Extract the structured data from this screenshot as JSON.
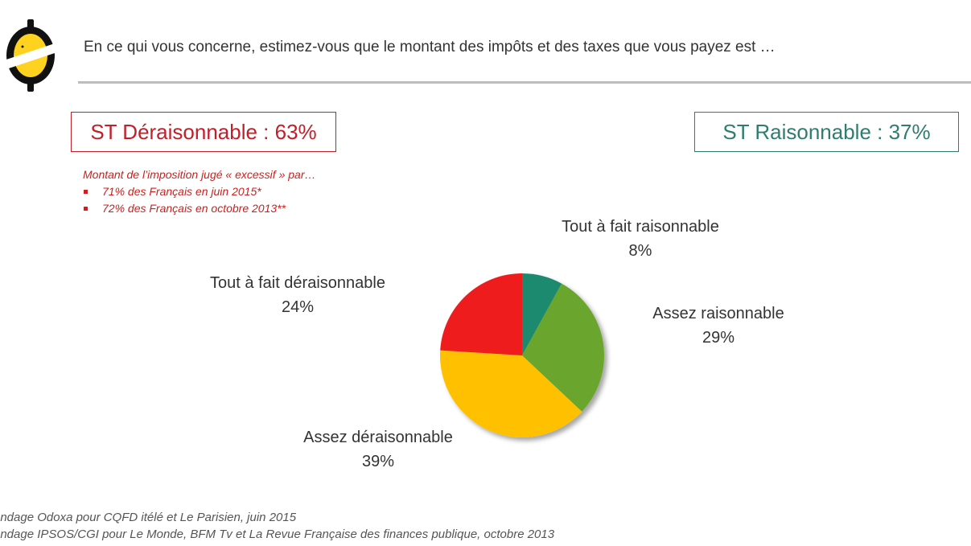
{
  "header": {
    "question": "En ce qui vous concerne, estimez-vous que le montant des impôts et des taxes que vous payez est …"
  },
  "summary": {
    "unreasonable": "ST Déraisonnable : 63%",
    "reasonable": "ST Raisonnable : 37%"
  },
  "note": {
    "title": "Montant de l’imposition jugé « excessif » par…",
    "items": [
      "71% des Français en juin 2015*",
      "72% des Français en octobre 2013**"
    ]
  },
  "chart_data": {
    "type": "pie",
    "slices": [
      {
        "label": "Tout à fait raisonnable",
        "value": 8,
        "value_label": "8%",
        "color": "#1e8a6e"
      },
      {
        "label": "Assez raisonnable",
        "value": 29,
        "value_label": "29%",
        "color": "#6aa52e"
      },
      {
        "label": "Assez déraisonnable",
        "value": 39,
        "value_label": "39%",
        "color": "#ffc000"
      },
      {
        "label": "Tout à fait déraisonnable",
        "value": 24,
        "value_label": "24%",
        "color": "#ee1c1c"
      }
    ],
    "start": "12 o'clock",
    "direction": "clockwise"
  },
  "sources": [
    "ondage Odoxa pour CQFD itélé et Le Parisien, juin 2015",
    "ondage IPSOS/CGI pour Le Monde, BFM Tv et La Revue Française des finances publique, octobre 2013"
  ],
  "colors": {
    "unreasonable": "#c0202a",
    "reasonable": "#2e7d6e",
    "logo_yellow": "#ffd21f"
  }
}
